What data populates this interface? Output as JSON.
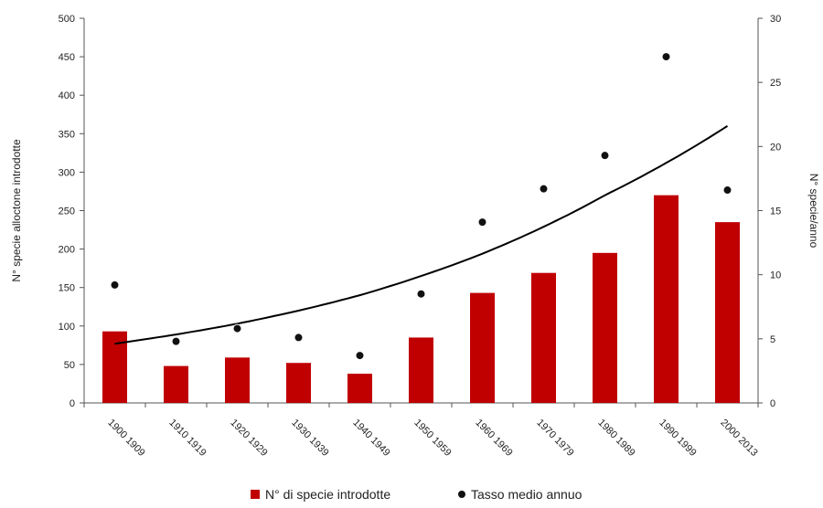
{
  "chart_data": {
    "type": "bar",
    "categories": [
      "1900 1909",
      "1910 1919",
      "1920 1929",
      "1930 1939",
      "1940 1949",
      "1950 1959",
      "1960 1969",
      "1970 1979",
      "1980 1989",
      "1990 1999",
      "2000 2013"
    ],
    "series": [
      {
        "name": "N° di specie introdotte",
        "type": "bar",
        "axis": "left",
        "color": "#c00000",
        "values": [
          93,
          48,
          59,
          52,
          38,
          85,
          143,
          169,
          195,
          270,
          235
        ]
      },
      {
        "name": "Tasso medio annuo",
        "type": "scatter",
        "axis": "right",
        "color": "#111111",
        "values": [
          9.2,
          4.8,
          5.8,
          5.1,
          3.7,
          8.5,
          14.1,
          16.7,
          19.3,
          27.0,
          16.6
        ]
      }
    ],
    "trendline": {
      "type": "exponential",
      "axis": "left",
      "color": "#000000",
      "values": [
        77,
        89,
        103,
        120,
        140,
        165,
        194,
        229,
        270,
        312,
        360
      ]
    },
    "ylabel": "N° specie alloctone introdotte",
    "ylabel_right": "N° specie/anno",
    "ylim": [
      0,
      500
    ],
    "yticks": [
      0,
      50,
      100,
      150,
      200,
      250,
      300,
      350,
      400,
      450,
      500
    ],
    "ylim_right": [
      0,
      30
    ],
    "yticks_right": [
      0,
      5,
      10,
      15,
      20,
      25,
      30
    ],
    "legend_position": "bottom",
    "grid": false
  }
}
